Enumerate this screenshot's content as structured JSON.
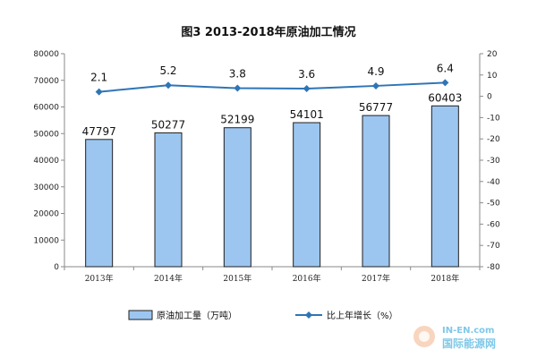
{
  "chart_data": {
    "type": "bar",
    "title": "图3 2013-2018年原油加工情况",
    "categories": [
      "2013年",
      "2014年",
      "2015年",
      "2016年",
      "2017年",
      "2018年"
    ],
    "series": [
      {
        "name": "原油加工量（万吨）",
        "type": "bar",
        "axis": "left",
        "values": [
          47797,
          50277,
          52199,
          54101,
          56777,
          60403
        ],
        "labels": [
          "47797",
          "50277",
          "52199",
          "54101",
          "56777",
          "60403"
        ],
        "color": "#9cc6f0"
      },
      {
        "name": "比上年增长（%）",
        "type": "line",
        "axis": "right",
        "values": [
          2.1,
          5.2,
          3.8,
          3.6,
          4.9,
          6.4
        ],
        "labels": [
          "2.1",
          "5.2",
          "3.8",
          "3.6",
          "4.9",
          "6.4"
        ],
        "color": "#2e75b6"
      }
    ],
    "ylim_left": [
      0,
      80000
    ],
    "yticks_left": [
      "0",
      "10000",
      "20000",
      "30000",
      "40000",
      "50000",
      "60000",
      "70000",
      "80000"
    ],
    "ylim_right": [
      -80,
      20
    ],
    "yticks_right": [
      "20",
      "10",
      "0",
      "-10",
      "-20",
      "-30",
      "-40",
      "-50",
      "-60",
      "-70",
      "-80"
    ],
    "grid": false,
    "legend_position": "bottom"
  },
  "watermark": {
    "line1": "IN-EN.com",
    "line2": "国际能源网"
  }
}
